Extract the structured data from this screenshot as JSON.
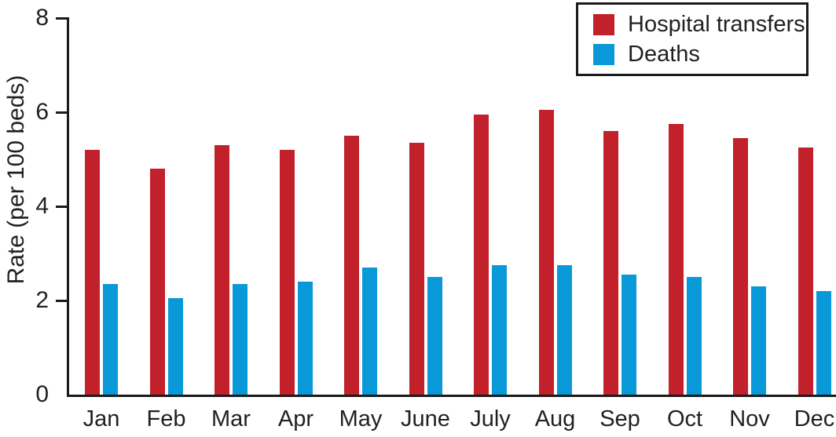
{
  "chart_data": {
    "type": "bar",
    "title": "",
    "xlabel": "",
    "ylabel": "Rate (per 100 beds)",
    "ylim": [
      0,
      8
    ],
    "yticks": [
      0,
      2,
      4,
      6,
      8
    ],
    "grid": false,
    "legend_position": "top-right",
    "categories": [
      "Jan",
      "Feb",
      "Mar",
      "Apr",
      "May",
      "June",
      "July",
      "Aug",
      "Sep",
      "Oct",
      "Nov",
      "Dec"
    ],
    "series": [
      {
        "name": "Hospital transfers",
        "color": "#c2212b",
        "values": [
          5.2,
          4.8,
          5.3,
          5.2,
          5.5,
          5.35,
          5.95,
          6.05,
          5.6,
          5.75,
          5.45,
          5.25
        ]
      },
      {
        "name": "Deaths",
        "color": "#0999d8",
        "values": [
          2.35,
          2.05,
          2.35,
          2.4,
          2.7,
          2.5,
          2.75,
          2.75,
          2.55,
          2.5,
          2.3,
          2.2
        ]
      }
    ]
  },
  "colors": {
    "axis": "#1a1a1a",
    "text": "#231f20",
    "background": "#ffffff"
  }
}
